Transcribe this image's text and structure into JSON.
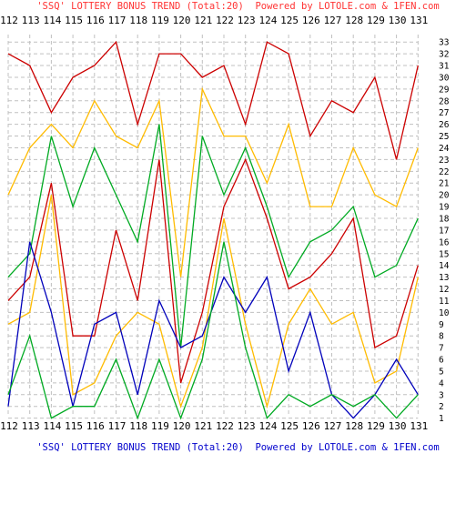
{
  "header_text": "'SSQ' LOTTERY BONUS TREND (Total:20)  Powered by LOTOLE.com & 1FEN.com",
  "footer_text": "'SSQ' LOTTERY BONUS TREND (Total:20)  Powered by LOTOLE.com & 1FEN.com",
  "colors": {
    "title": "#ff3333",
    "footer": "#0000cc",
    "grid": "#c0c0c0",
    "axis_text": "#000000",
    "red": "#cc0000",
    "orange": "#ffbb00",
    "green": "#00aa22",
    "blue": "#0000bb"
  },
  "chart_data": {
    "type": "line",
    "title": "'SSQ' LOTTERY BONUS TREND (Total:20)",
    "x": [
      "112",
      "113",
      "114",
      "115",
      "116",
      "117",
      "118",
      "119",
      "120",
      "121",
      "122",
      "123",
      "124",
      "125",
      "126",
      "127",
      "128",
      "129",
      "130",
      "131"
    ],
    "ylim": [
      1,
      33
    ],
    "y_ticks": [
      1,
      2,
      3,
      4,
      5,
      6,
      7,
      8,
      9,
      10,
      11,
      12,
      13,
      14,
      15,
      16,
      17,
      18,
      19,
      20,
      21,
      22,
      23,
      24,
      25,
      26,
      27,
      28,
      29,
      30,
      31,
      32,
      33
    ],
    "grid": true,
    "series": [
      {
        "color": "red",
        "values": [
          32,
          31,
          27,
          30,
          31,
          33,
          26,
          32,
          32,
          30,
          31,
          26,
          33,
          32,
          25,
          28,
          27,
          30,
          23,
          31
        ]
      },
      {
        "color": "orange",
        "values": [
          20,
          24,
          26,
          24,
          28,
          25,
          24,
          28,
          13,
          29,
          25,
          25,
          21,
          26,
          19,
          19,
          24,
          20,
          19,
          24
        ]
      },
      {
        "color": "green",
        "values": [
          13,
          15,
          25,
          19,
          24,
          20,
          16,
          26,
          7,
          25,
          20,
          24,
          19,
          13,
          16,
          17,
          19,
          13,
          14,
          18
        ]
      },
      {
        "color": "red",
        "values": [
          11,
          13,
          21,
          8,
          8,
          17,
          11,
          23,
          4,
          10,
          19,
          23,
          18,
          12,
          13,
          15,
          18,
          7,
          8,
          14
        ]
      },
      {
        "color": "orange",
        "values": [
          9,
          10,
          20,
          3,
          4,
          8,
          10,
          9,
          2,
          7,
          18,
          9,
          2,
          9,
          12,
          9,
          10,
          4,
          5,
          13
        ]
      },
      {
        "color": "blue",
        "values": [
          2,
          16,
          10,
          2,
          9,
          10,
          3,
          11,
          7,
          8,
          13,
          10,
          13,
          5,
          10,
          3,
          1,
          3,
          6,
          3
        ]
      },
      {
        "color": "green",
        "values": [
          3,
          8,
          1,
          2,
          2,
          6,
          1,
          6,
          1,
          6,
          16,
          7,
          1,
          3,
          2,
          3,
          2,
          3,
          1,
          3
        ]
      }
    ]
  }
}
